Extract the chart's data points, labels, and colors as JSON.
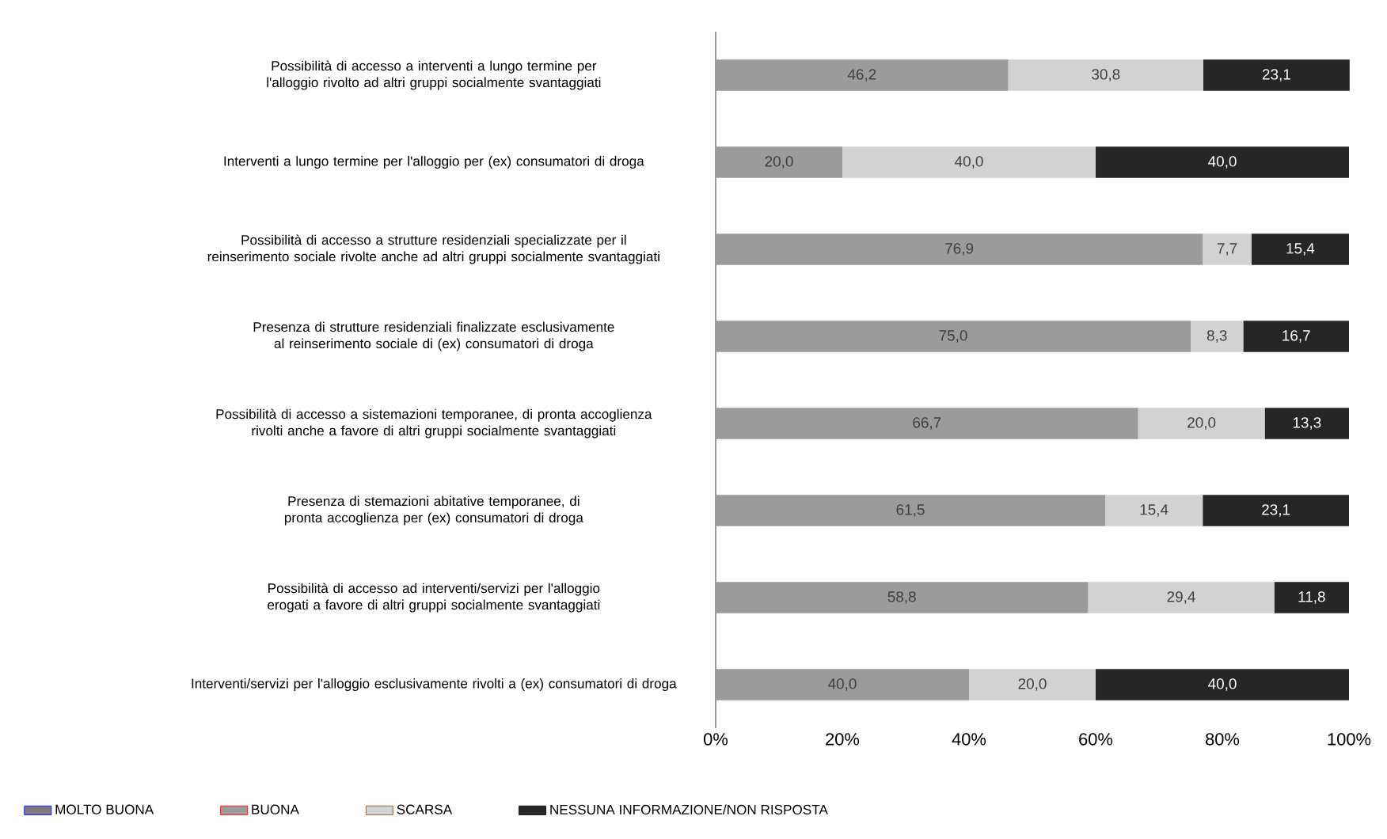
{
  "chart_data": {
    "type": "bar",
    "orientation": "horizontal",
    "stacked": true,
    "categories": [
      "Possibilità di accesso a interventi a lungo termine per l'alloggio rivolto ad altri gruppi socialmente svantaggiati",
      "Interventi a lungo termine per l'alloggio per (ex) consumatori di droga",
      "Possibilità di accesso a strutture residenziali specializzate per il reinserimento sociale rivolte anche ad altri gruppi socialmente svantaggiati",
      "Presenza di strutture residenziali finalizzate esclusivamente al reinserimento sociale di (ex) consumatori di droga",
      "Possibilità di accesso a sistemazioni temporanee, di pronta accoglienza rivolti anche a favore di altri gruppi socialmente svantaggiati",
      "Presenza di stemazioni abitative temporanee, di pronta accoglienza per (ex) consumatori di droga",
      "Possibilità di accesso ad interventi/servizi per l'alloggio erogati a favore di altri gruppi socialmente svantaggiati",
      "Interventi/servizi per l'alloggio esclusivamente rivolti a (ex) consumatori di droga"
    ],
    "series": [
      {
        "name": "MOLTO BUONA",
        "color": "#7a7a7a",
        "values": [
          0,
          0,
          0,
          0,
          0,
          0,
          0,
          0
        ],
        "value_labels": [
          null,
          null,
          null,
          null,
          null,
          null,
          null,
          null
        ]
      },
      {
        "name": "BUONA",
        "color": "#9b9b9b",
        "values": [
          46.2,
          20.0,
          76.9,
          75.0,
          66.7,
          61.5,
          58.8,
          40.0
        ],
        "value_labels": [
          "46,2",
          "20,0",
          "76,9",
          "75,0",
          "66,7",
          "61,5",
          "58,8",
          "40,0"
        ]
      },
      {
        "name": "SCARSA",
        "color": "#d2d2d2",
        "values": [
          30.8,
          40.0,
          7.7,
          8.3,
          20.0,
          15.4,
          29.4,
          20.0
        ],
        "value_labels": [
          "30,8",
          "40,0",
          "7,7",
          "8,3",
          "20,0",
          "15,4",
          "29,4",
          "20,0"
        ]
      },
      {
        "name": "NESSUNA INFORMAZIONE/NON RISPOSTA",
        "color": "#262626",
        "values": [
          23.1,
          40.0,
          15.4,
          16.7,
          13.3,
          23.1,
          11.8,
          40.0
        ],
        "value_labels": [
          "23,1",
          "40,0",
          "15,4",
          "16,7",
          "13,3",
          "23,1",
          "11,8",
          "40,0"
        ]
      }
    ],
    "xlim": [
      0,
      100
    ],
    "xticks": [
      {
        "value": 0,
        "label": "0%"
      },
      {
        "value": 20,
        "label": "20%"
      },
      {
        "value": 40,
        "label": "40%"
      },
      {
        "value": 60,
        "label": "60%"
      },
      {
        "value": 80,
        "label": "80%"
      },
      {
        "value": 100,
        "label": "100%"
      }
    ],
    "grid": false,
    "legend": "bottom"
  }
}
